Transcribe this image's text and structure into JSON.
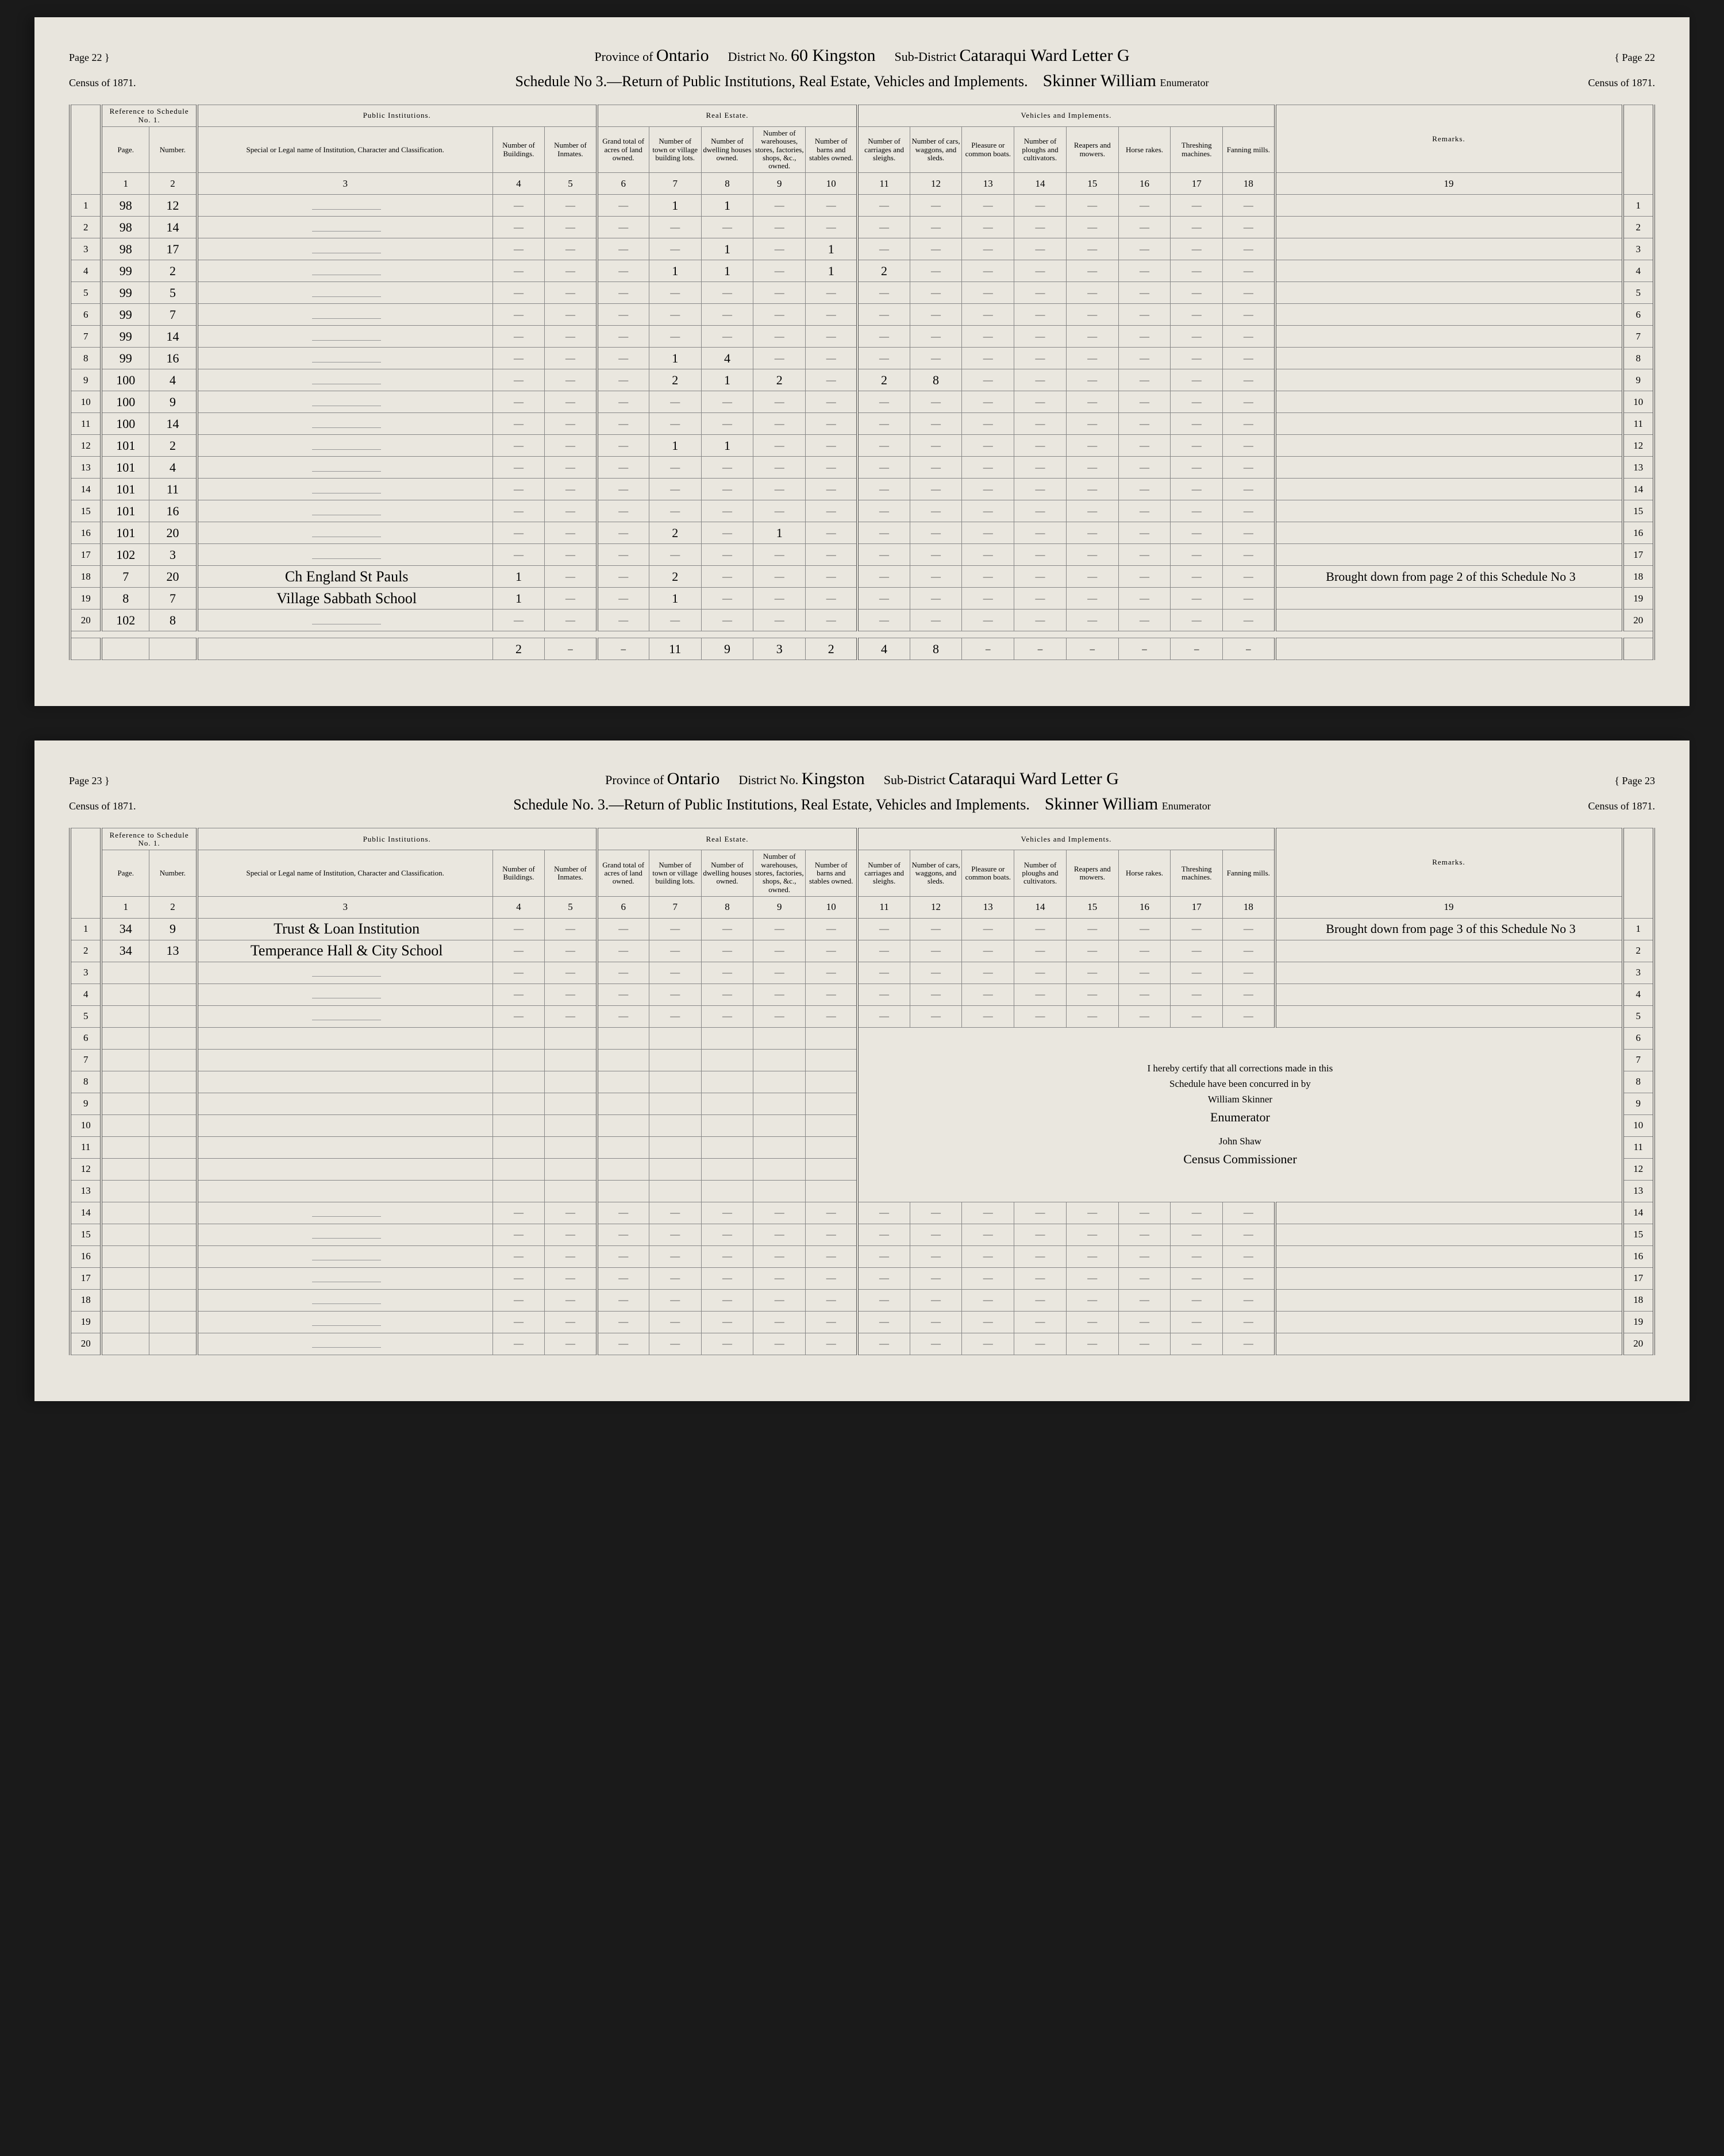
{
  "colors": {
    "paper": "#e8e5dd",
    "ink": "#333333",
    "rule": "#888888",
    "bg": "#1a1a1a"
  },
  "top": {
    "page_label_left": "Page 22",
    "page_label_right": "Page 22",
    "census_label": "Census of 1871.",
    "province_label": "Province of",
    "province": "Ontario",
    "district_label": "District No.",
    "district": "60 Kingston",
    "subdistrict_label": "Sub-District",
    "subdistrict": "Cataraqui Ward Letter G",
    "enumerator": "Skinner William",
    "enumerator_label": "Enumerator",
    "schedule_title": "Schedule No 3.—Return of Public Institutions, Real Estate, Vehicles and Implements.",
    "sections": {
      "ref": "Reference to Schedule No. 1.",
      "pub": "Public Institutions.",
      "real": "Real Estate.",
      "veh": "Vehicles and Implements.",
      "rem": "Remarks."
    },
    "headers": {
      "page": "Page.",
      "number": "Number.",
      "inst": "Special or Legal name of Institution, Character and Classification.",
      "bld": "Number of Buildings.",
      "inm": "Number of Inmates.",
      "acres": "Grand total of acres of land owned.",
      "lots": "Number of town or village building lots.",
      "dwell": "Number of dwelling houses owned.",
      "ware": "Number of warehouses, stores, factories, shops, &c., owned.",
      "barns": "Number of barns and stables owned.",
      "carr": "Number of carriages and sleighs.",
      "wag": "Number of cars, waggons, and sleds.",
      "boats": "Pleasure or common boats.",
      "plough": "Number of ploughs and cultivators.",
      "reap": "Reapers and mowers.",
      "rake": "Horse rakes.",
      "thresh": "Threshing machines.",
      "fan": "Fanning mills."
    },
    "colnums": [
      "1",
      "2",
      "3",
      "4",
      "5",
      "6",
      "7",
      "8",
      "9",
      "10",
      "11",
      "12",
      "13",
      "14",
      "15",
      "16",
      "17",
      "18",
      "19"
    ],
    "rows": [
      {
        "rn": "1",
        "p": "98",
        "n": "12",
        "c7": "1",
        "c8": "1"
      },
      {
        "rn": "2",
        "p": "98",
        "n": "14"
      },
      {
        "rn": "3",
        "p": "98",
        "n": "17",
        "c8": "1",
        "c10": "1"
      },
      {
        "rn": "4",
        "p": "99",
        "n": "2",
        "c7": "1",
        "c8": "1",
        "c10": "1",
        "c11": "2"
      },
      {
        "rn": "5",
        "p": "99",
        "n": "5"
      },
      {
        "rn": "6",
        "p": "99",
        "n": "7"
      },
      {
        "rn": "7",
        "p": "99",
        "n": "14"
      },
      {
        "rn": "8",
        "p": "99",
        "n": "16",
        "c7": "1",
        "c8": "4"
      },
      {
        "rn": "9",
        "p": "100",
        "n": "4",
        "c7": "2",
        "c8": "1",
        "c9": "2",
        "c11": "2",
        "c12": "8"
      },
      {
        "rn": "10",
        "p": "100",
        "n": "9"
      },
      {
        "rn": "11",
        "p": "100",
        "n": "14"
      },
      {
        "rn": "12",
        "p": "101",
        "n": "2",
        "c7": "1",
        "c8": "1"
      },
      {
        "rn": "13",
        "p": "101",
        "n": "4"
      },
      {
        "rn": "14",
        "p": "101",
        "n": "11"
      },
      {
        "rn": "15",
        "p": "101",
        "n": "16"
      },
      {
        "rn": "16",
        "p": "101",
        "n": "20",
        "c7": "2",
        "c9": "1"
      },
      {
        "rn": "17",
        "p": "102",
        "n": "3"
      },
      {
        "rn": "18",
        "p": "7",
        "n": "20",
        "inst": "Ch England St Pauls",
        "c4": "1",
        "c7": "2",
        "rem": "Brought down from page 2 of this Schedule No 3"
      },
      {
        "rn": "19",
        "p": "8",
        "n": "7",
        "inst": "Village Sabbath School",
        "c4": "1",
        "c7": "1"
      },
      {
        "rn": "20",
        "p": "102",
        "n": "8"
      }
    ],
    "totals": {
      "c4": "2",
      "c5": "–",
      "c6": "–",
      "c7": "11",
      "c8": "9",
      "c9": "3",
      "c10": "2",
      "c11": "4",
      "c12": "8",
      "c13": "–",
      "c14": "–",
      "c15": "–",
      "c16": "–",
      "c17": "–",
      "c18": "–"
    }
  },
  "bottom": {
    "page_label_left": "Page 23",
    "page_label_right": "Page 23",
    "census_label": "Census of 1871.",
    "province_label": "Province of",
    "province": "Ontario",
    "district_label": "District No.",
    "district": "Kingston",
    "subdistrict_label": "Sub-District",
    "subdistrict": "Cataraqui Ward Letter G",
    "enumerator": "Skinner William",
    "enumerator_label": "Enumerator",
    "schedule_title": "Schedule No. 3.—Return of Public Institutions, Real Estate, Vehicles and Implements.",
    "rows": [
      {
        "rn": "1",
        "p": "34",
        "n": "9",
        "inst": "Trust & Loan Institution",
        "rem": "Brought down from page 3 of this Schedule No 3"
      },
      {
        "rn": "2",
        "p": "34",
        "n": "13",
        "inst": "Temperance Hall & City School"
      }
    ],
    "blank_rows": [
      "3",
      "4",
      "5",
      "6",
      "7",
      "8",
      "9",
      "10",
      "11",
      "12",
      "13",
      "14",
      "15",
      "16",
      "17",
      "18",
      "19",
      "20"
    ],
    "certification": {
      "l1": "I hereby certify that all corrections made in this",
      "l2": "Schedule have been concurred in by",
      "l3": "William Skinner",
      "l4": "Enumerator",
      "l5": "John Shaw",
      "l6": "Census Commissioner"
    }
  }
}
